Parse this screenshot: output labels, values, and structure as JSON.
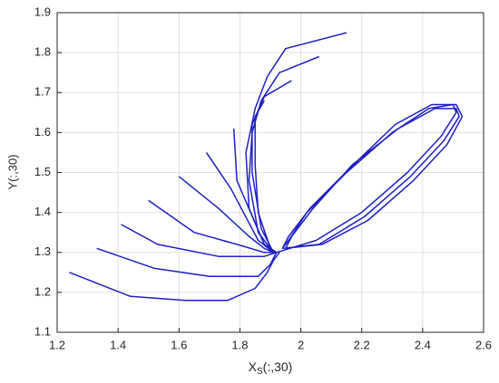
{
  "chart_data": {
    "type": "line",
    "xlabel": [
      "X",
      "S",
      "(:,30)"
    ],
    "ylabel": "Y(:,30)",
    "color": "#1f1fc4",
    "grid": true,
    "xlim": [
      1.2,
      2.6
    ],
    "xticks": [
      1.2,
      1.4,
      1.6,
      1.8,
      2,
      2.2,
      2.4,
      2.6
    ],
    "ylim": [
      1.1,
      1.9
    ],
    "yticks": [
      1.1,
      1.2,
      1.3,
      1.4,
      1.5,
      1.6,
      1.7,
      1.8,
      1.9
    ],
    "series": [
      {
        "x": [
          1.24,
          1.44,
          1.62,
          1.76,
          1.85,
          1.89,
          1.91,
          1.93
        ],
        "values": [
          1.25,
          1.19,
          1.18,
          1.18,
          1.21,
          1.25,
          1.28,
          1.3
        ]
      },
      {
        "x": [
          1.33,
          1.52,
          1.7,
          1.86,
          1.9,
          1.92
        ],
        "values": [
          1.31,
          1.26,
          1.24,
          1.24,
          1.27,
          1.3
        ]
      },
      {
        "x": [
          1.41,
          1.53,
          1.73,
          1.88,
          1.92
        ],
        "values": [
          1.37,
          1.32,
          1.29,
          1.29,
          1.3
        ]
      },
      {
        "x": [
          1.5,
          1.65,
          1.79,
          1.88,
          1.92
        ],
        "values": [
          1.43,
          1.35,
          1.32,
          1.3,
          1.3
        ]
      },
      {
        "x": [
          1.6,
          1.73,
          1.83,
          1.88,
          1.91
        ],
        "values": [
          1.49,
          1.41,
          1.34,
          1.31,
          1.3
        ]
      },
      {
        "x": [
          1.69,
          1.77,
          1.86,
          1.91
        ],
        "values": [
          1.55,
          1.46,
          1.33,
          1.3
        ]
      },
      {
        "x": [
          1.78,
          1.79,
          1.88,
          1.91
        ],
        "values": [
          1.61,
          1.48,
          1.32,
          1.3
        ]
      },
      {
        "x": [
          2.15,
          1.95,
          1.89,
          1.85,
          1.82,
          1.83,
          1.88,
          1.92
        ],
        "values": [
          1.85,
          1.81,
          1.74,
          1.66,
          1.55,
          1.41,
          1.32,
          1.3
        ]
      },
      {
        "x": [
          2.06,
          1.93,
          1.87,
          1.84,
          1.83,
          1.86,
          1.91
        ],
        "values": [
          1.79,
          1.75,
          1.68,
          1.6,
          1.48,
          1.35,
          1.3
        ]
      },
      {
        "x": [
          1.97,
          1.88,
          1.84,
          1.84,
          1.87,
          1.91
        ],
        "values": [
          1.73,
          1.69,
          1.62,
          1.5,
          1.36,
          1.3
        ]
      },
      {
        "x": [
          1.88,
          1.85,
          1.85,
          1.86,
          1.9
        ],
        "values": [
          1.68,
          1.64,
          1.52,
          1.4,
          1.31
        ]
      },
      {
        "x": [
          1.92,
          2.05,
          2.2,
          2.35,
          2.46,
          2.51,
          2.5,
          2.42,
          2.3,
          2.15,
          2.02,
          1.96,
          1.94,
          2.06,
          2.21,
          2.36,
          2.47,
          2.52,
          2.51,
          2.44,
          2.32,
          2.17,
          2.04,
          1.97,
          1.95,
          2.07,
          2.22,
          2.37,
          2.48,
          2.53,
          2.51,
          2.43,
          2.31,
          2.16,
          2.03,
          1.96,
          1.94
        ],
        "values": [
          1.3,
          1.33,
          1.4,
          1.5,
          1.59,
          1.65,
          1.67,
          1.66,
          1.6,
          1.5,
          1.4,
          1.33,
          1.31,
          1.32,
          1.39,
          1.49,
          1.58,
          1.64,
          1.66,
          1.66,
          1.61,
          1.52,
          1.41,
          1.34,
          1.31,
          1.32,
          1.38,
          1.48,
          1.57,
          1.64,
          1.67,
          1.67,
          1.62,
          1.51,
          1.41,
          1.34,
          1.31
        ]
      }
    ]
  }
}
